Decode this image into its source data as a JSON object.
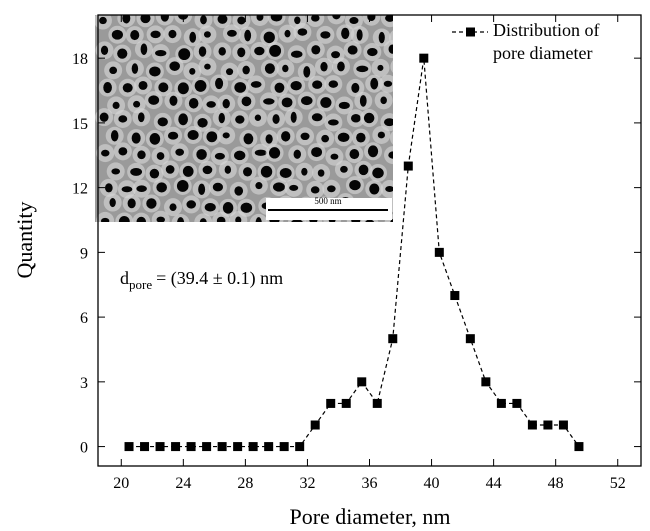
{
  "chart_data": {
    "type": "line",
    "x_label": "Pore diameter, nm",
    "y_label": "Quantity",
    "annotation": {
      "main": "d",
      "subscript": "pore",
      "rest": "= (39.4 ± 0.1) nm"
    },
    "inset_scale_label": "500 nm",
    "x": [
      20.5,
      21.5,
      22.5,
      23.5,
      24.5,
      25.5,
      26.5,
      27.5,
      28.5,
      29.5,
      30.5,
      31.5,
      32.5,
      33.5,
      34.5,
      35.5,
      36.5,
      37.5,
      38.5,
      39.5,
      40.5,
      41.5,
      42.5,
      43.5,
      44.5,
      45.5,
      46.5,
      47.5,
      48.5,
      49.5
    ],
    "series": [
      {
        "name": "Distribution of pore diameter",
        "color": "#000000",
        "values": [
          0,
          0,
          0,
          0,
          0,
          0,
          0,
          0,
          0,
          0,
          0,
          0,
          1,
          2,
          2,
          3,
          2,
          5,
          13,
          18,
          9,
          7,
          5,
          3,
          2,
          2,
          1,
          1,
          1,
          0
        ]
      }
    ],
    "xlim": [
      18.5,
      53.5
    ],
    "xticks": [
      20,
      24,
      28,
      32,
      36,
      40,
      44,
      48,
      52
    ],
    "ylim": [
      -0.9,
      20
    ],
    "yticks": [
      0,
      3,
      6,
      9,
      12,
      15,
      18
    ],
    "legend": "top-right",
    "grid": false
  }
}
